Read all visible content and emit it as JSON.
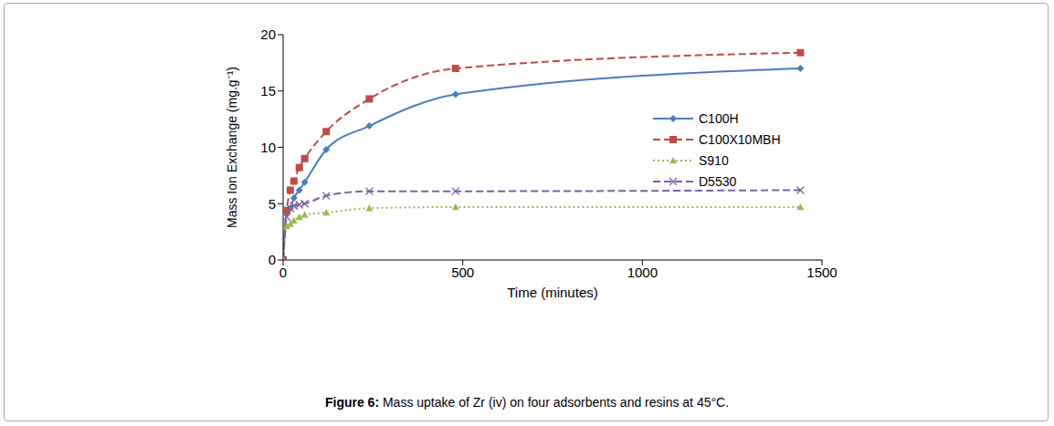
{
  "chart_data": {
    "type": "line",
    "title": "Figure 6: Mass uptake of Zr (iv) on four adsorbents and resins at 45°C.",
    "x_label": "Time (minutes)",
    "y_label": "Mass Ion Exchange (mg.g⁻¹)",
    "x": [
      0,
      10,
      20,
      30,
      45,
      60,
      120,
      240,
      480,
      1440
    ],
    "series": [
      {
        "name": "C100H",
        "color": "#4a7ebb",
        "marker": "diamond",
        "line_style": "solid",
        "values": [
          0,
          4.4,
          4.6,
          5.5,
          6.2,
          6.9,
          9.8,
          11.9,
          14.7,
          17.0
        ]
      },
      {
        "name": "C100X10MBH",
        "color": "#be4b48",
        "marker": "square",
        "line_style": "dashed",
        "values": [
          0,
          4.4,
          6.2,
          7.0,
          8.2,
          9.0,
          11.4,
          14.3,
          17.0,
          18.4
        ]
      },
      {
        "name": "S910",
        "color": "#98b954",
        "marker": "triangle",
        "line_style": "dotted",
        "values": [
          0,
          3.0,
          3.2,
          3.5,
          3.8,
          4.0,
          4.2,
          4.6,
          4.7,
          4.7
        ]
      },
      {
        "name": "D5530",
        "color": "#7d60a0",
        "marker": "x",
        "line_style": "dashed",
        "values": [
          0,
          3.8,
          4.6,
          4.8,
          4.9,
          5.0,
          5.7,
          6.1,
          6.1,
          6.2
        ]
      }
    ],
    "xlim": [
      0,
      1500
    ],
    "xticks": [
      0,
      500,
      1000,
      1500
    ],
    "ylim": [
      0,
      20
    ],
    "yticks": [
      0,
      5,
      10,
      15,
      20
    ],
    "grid": false,
    "legend": "right"
  }
}
